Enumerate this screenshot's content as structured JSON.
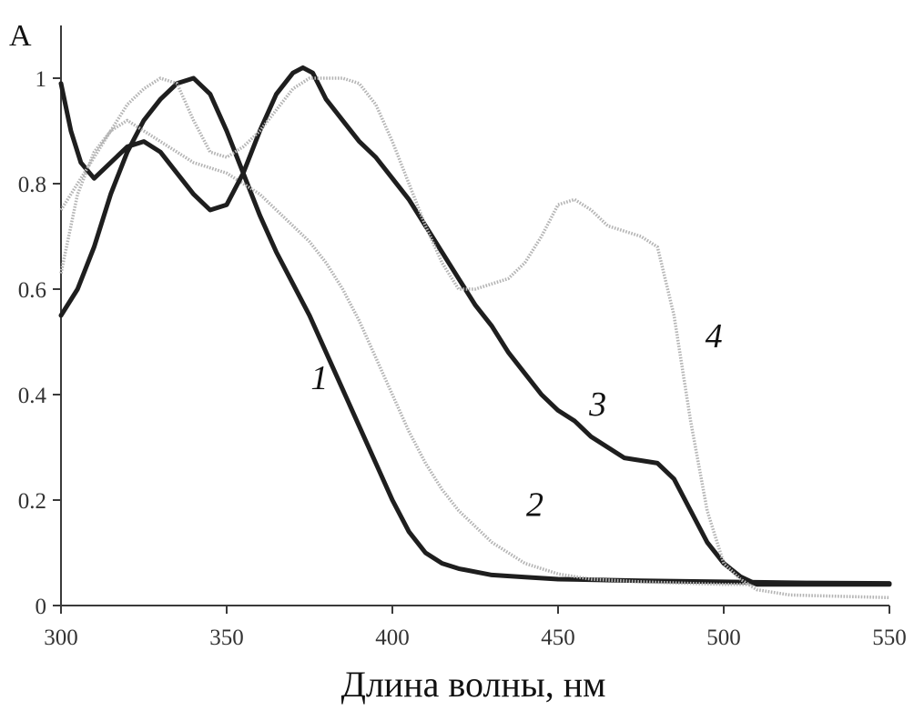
{
  "chart_data": {
    "type": "line",
    "title": "",
    "xlabel": "Длина волны, нм",
    "ylabel": "A",
    "xlim": [
      300,
      550
    ],
    "ylim": [
      0,
      1.05
    ],
    "x_ticks": [
      300,
      350,
      400,
      450,
      500,
      550
    ],
    "x_tick_labels": [
      "300",
      "350",
      "400",
      "450",
      "500",
      "550"
    ],
    "y_ticks": [
      0,
      0.2,
      0.4,
      0.6,
      0.8,
      1
    ],
    "y_tick_labels": [
      "0",
      "0.2",
      "0.4",
      "0.6",
      "0.8",
      "1"
    ],
    "grid": false,
    "legend": "none",
    "series": [
      {
        "label": "1",
        "style": "solid",
        "color": "#1e1e1e",
        "label_at": [
          378,
          0.41
        ],
        "points": [
          [
            300,
            0.55
          ],
          [
            305,
            0.6
          ],
          [
            310,
            0.68
          ],
          [
            315,
            0.78
          ],
          [
            320,
            0.86
          ],
          [
            325,
            0.92
          ],
          [
            330,
            0.96
          ],
          [
            335,
            0.99
          ],
          [
            340,
            1.0
          ],
          [
            345,
            0.97
          ],
          [
            350,
            0.9
          ],
          [
            355,
            0.82
          ],
          [
            360,
            0.74
          ],
          [
            365,
            0.67
          ],
          [
            370,
            0.61
          ],
          [
            375,
            0.55
          ],
          [
            380,
            0.48
          ],
          [
            385,
            0.41
          ],
          [
            390,
            0.34
          ],
          [
            395,
            0.27
          ],
          [
            400,
            0.2
          ],
          [
            405,
            0.14
          ],
          [
            410,
            0.1
          ],
          [
            415,
            0.08
          ],
          [
            420,
            0.07
          ],
          [
            430,
            0.058
          ],
          [
            440,
            0.054
          ],
          [
            450,
            0.05
          ],
          [
            475,
            0.047
          ],
          [
            500,
            0.045
          ],
          [
            525,
            0.043
          ],
          [
            550,
            0.042
          ]
        ]
      },
      {
        "label": "2",
        "style": "dotted",
        "color": "#b4b4b4",
        "label_at": [
          443,
          0.17
        ],
        "points": [
          [
            300,
            0.63
          ],
          [
            305,
            0.78
          ],
          [
            310,
            0.86
          ],
          [
            315,
            0.9
          ],
          [
            320,
            0.92
          ],
          [
            325,
            0.9
          ],
          [
            330,
            0.88
          ],
          [
            335,
            0.86
          ],
          [
            340,
            0.84
          ],
          [
            345,
            0.83
          ],
          [
            350,
            0.82
          ],
          [
            355,
            0.8
          ],
          [
            360,
            0.78
          ],
          [
            365,
            0.75
          ],
          [
            370,
            0.72
          ],
          [
            375,
            0.69
          ],
          [
            380,
            0.65
          ],
          [
            385,
            0.6
          ],
          [
            390,
            0.54
          ],
          [
            395,
            0.47
          ],
          [
            400,
            0.4
          ],
          [
            405,
            0.33
          ],
          [
            410,
            0.27
          ],
          [
            415,
            0.22
          ],
          [
            420,
            0.18
          ],
          [
            425,
            0.15
          ],
          [
            430,
            0.12
          ],
          [
            435,
            0.1
          ],
          [
            440,
            0.08
          ],
          [
            450,
            0.06
          ],
          [
            460,
            0.05
          ],
          [
            475,
            0.045
          ],
          [
            500,
            0.04
          ],
          [
            525,
            0.04
          ],
          [
            550,
            0.04
          ]
        ]
      },
      {
        "label": "3",
        "style": "solid",
        "color": "#1e1e1e",
        "label_at": [
          462,
          0.36
        ],
        "points": [
          [
            300,
            0.99
          ],
          [
            303,
            0.9
          ],
          [
            306,
            0.84
          ],
          [
            310,
            0.81
          ],
          [
            315,
            0.84
          ],
          [
            320,
            0.87
          ],
          [
            325,
            0.88
          ],
          [
            330,
            0.86
          ],
          [
            335,
            0.82
          ],
          [
            340,
            0.78
          ],
          [
            345,
            0.75
          ],
          [
            350,
            0.76
          ],
          [
            355,
            0.82
          ],
          [
            360,
            0.9
          ],
          [
            365,
            0.97
          ],
          [
            370,
            1.01
          ],
          [
            373,
            1.02
          ],
          [
            376,
            1.01
          ],
          [
            380,
            0.96
          ],
          [
            385,
            0.92
          ],
          [
            390,
            0.88
          ],
          [
            395,
            0.85
          ],
          [
            400,
            0.81
          ],
          [
            405,
            0.77
          ],
          [
            410,
            0.72
          ],
          [
            415,
            0.67
          ],
          [
            420,
            0.62
          ],
          [
            425,
            0.57
          ],
          [
            430,
            0.53
          ],
          [
            435,
            0.48
          ],
          [
            440,
            0.44
          ],
          [
            445,
            0.4
          ],
          [
            450,
            0.37
          ],
          [
            455,
            0.35
          ],
          [
            460,
            0.32
          ],
          [
            465,
            0.3
          ],
          [
            470,
            0.28
          ],
          [
            475,
            0.275
          ],
          [
            480,
            0.27
          ],
          [
            485,
            0.24
          ],
          [
            490,
            0.18
          ],
          [
            495,
            0.12
          ],
          [
            500,
            0.08
          ],
          [
            505,
            0.055
          ],
          [
            510,
            0.04
          ],
          [
            520,
            0.04
          ],
          [
            550,
            0.04
          ]
        ]
      },
      {
        "label": "4",
        "style": "dotted",
        "color": "#b4b4b4",
        "label_at": [
          497,
          0.49
        ],
        "points": [
          [
            300,
            0.75
          ],
          [
            305,
            0.8
          ],
          [
            310,
            0.85
          ],
          [
            315,
            0.9
          ],
          [
            320,
            0.95
          ],
          [
            325,
            0.98
          ],
          [
            330,
            1.0
          ],
          [
            335,
            0.99
          ],
          [
            340,
            0.92
          ],
          [
            345,
            0.86
          ],
          [
            350,
            0.85
          ],
          [
            355,
            0.87
          ],
          [
            360,
            0.9
          ],
          [
            365,
            0.94
          ],
          [
            370,
            0.98
          ],
          [
            375,
            1.0
          ],
          [
            380,
            1.0
          ],
          [
            385,
            1.0
          ],
          [
            390,
            0.99
          ],
          [
            395,
            0.95
          ],
          [
            400,
            0.88
          ],
          [
            405,
            0.8
          ],
          [
            410,
            0.72
          ],
          [
            415,
            0.65
          ],
          [
            420,
            0.6
          ],
          [
            425,
            0.6
          ],
          [
            430,
            0.61
          ],
          [
            435,
            0.62
          ],
          [
            440,
            0.65
          ],
          [
            445,
            0.7
          ],
          [
            450,
            0.76
          ],
          [
            455,
            0.77
          ],
          [
            460,
            0.75
          ],
          [
            465,
            0.72
          ],
          [
            470,
            0.71
          ],
          [
            475,
            0.7
          ],
          [
            480,
            0.68
          ],
          [
            485,
            0.55
          ],
          [
            490,
            0.35
          ],
          [
            495,
            0.18
          ],
          [
            500,
            0.08
          ],
          [
            505,
            0.05
          ],
          [
            510,
            0.03
          ],
          [
            520,
            0.02
          ],
          [
            550,
            0.015
          ]
        ]
      }
    ]
  }
}
